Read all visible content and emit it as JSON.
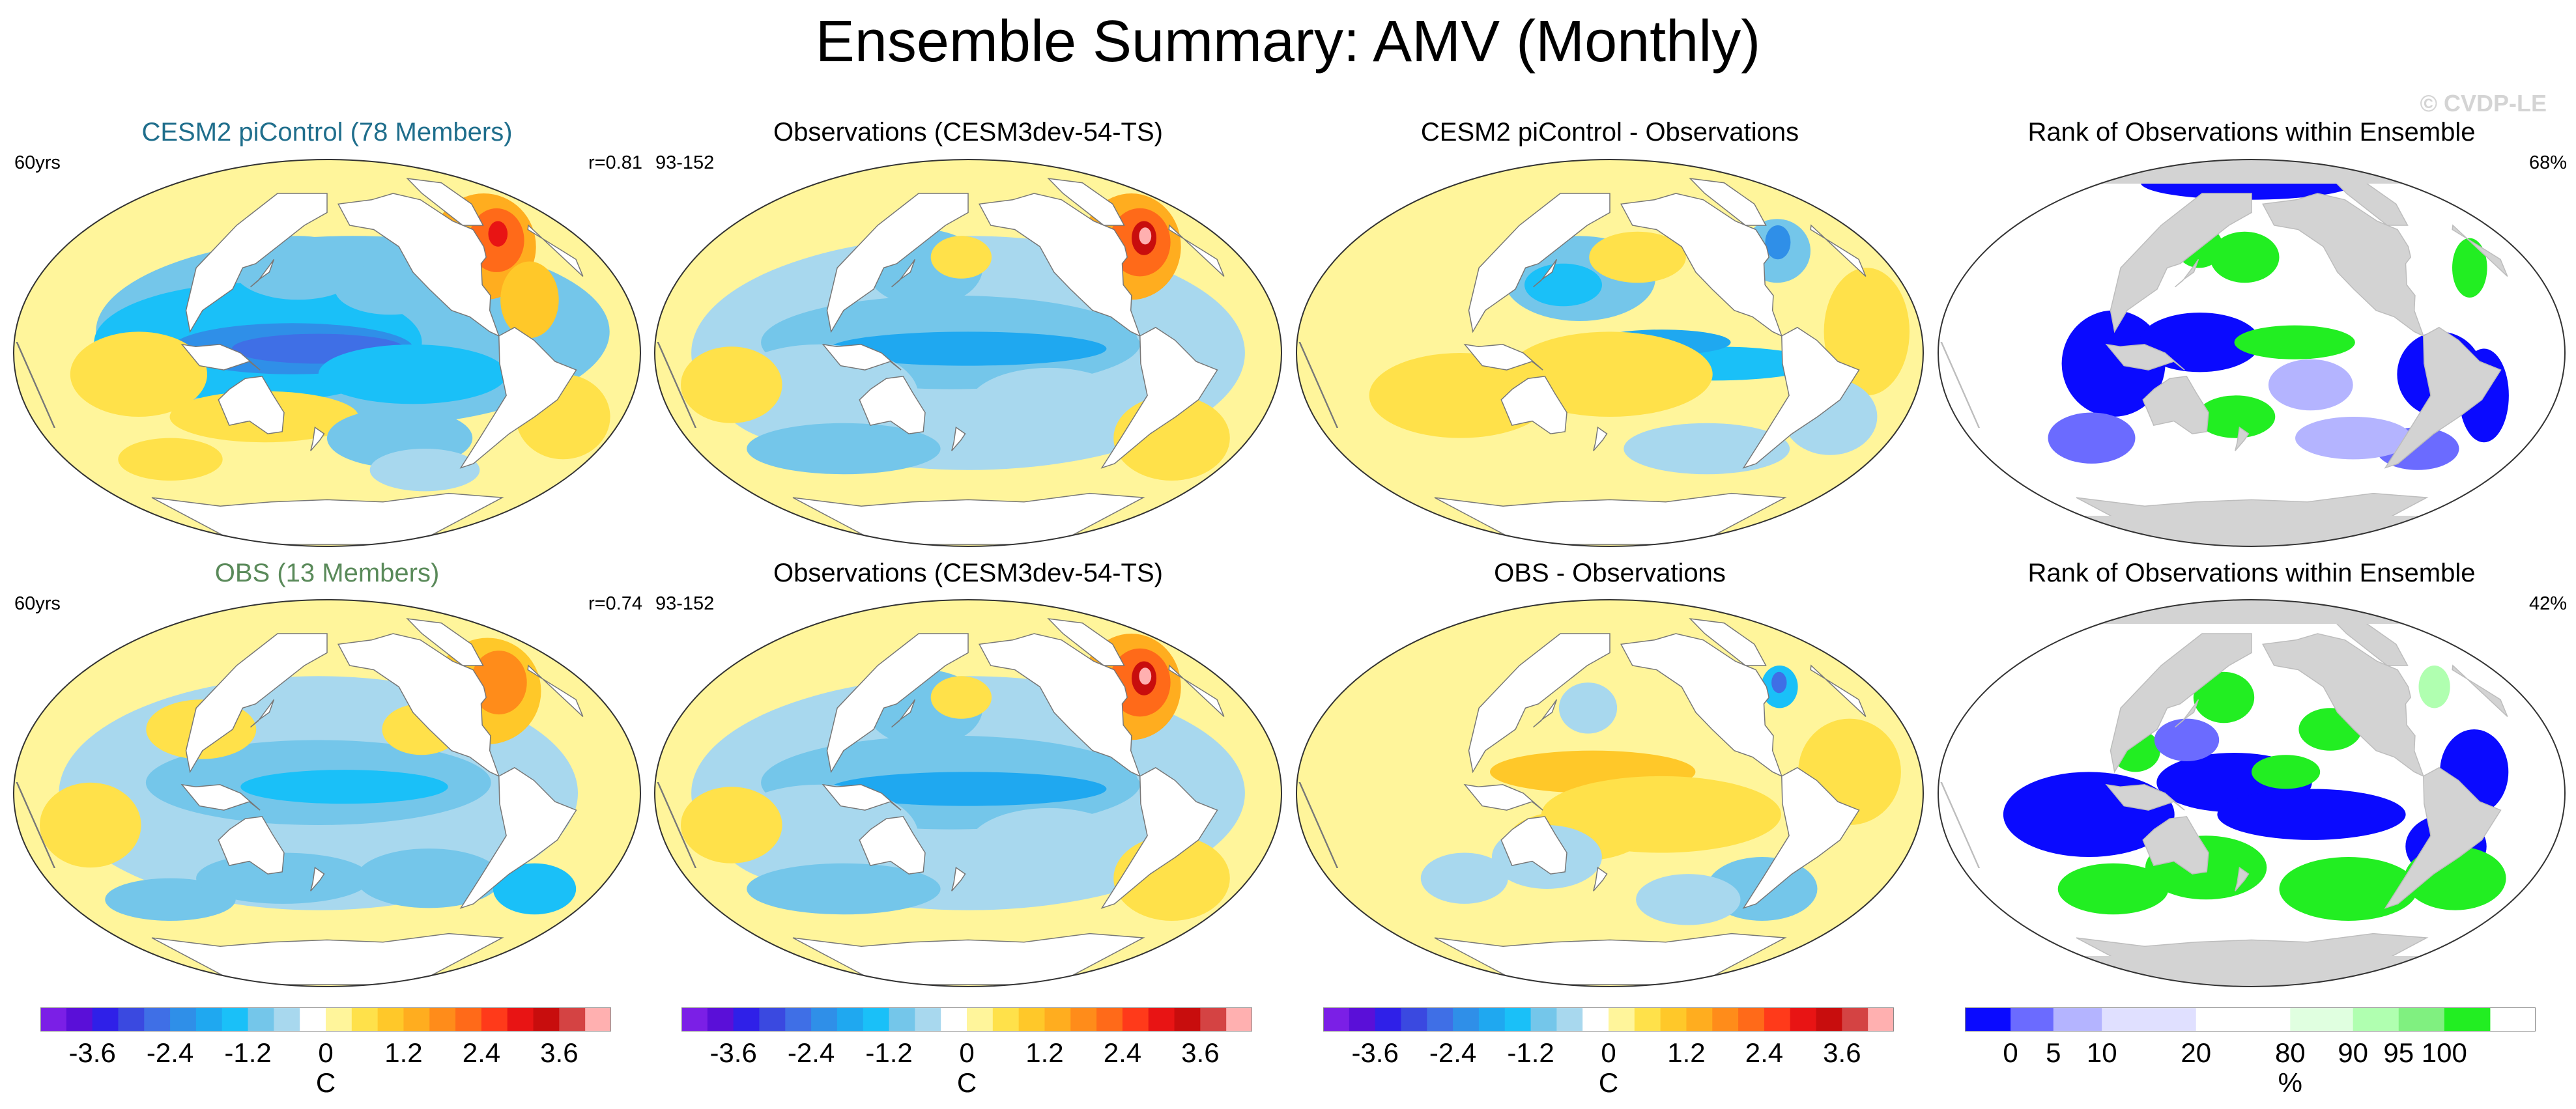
{
  "title": "Ensemble Summary: AMV (Monthly)",
  "watermark": "© CVDP-LE",
  "colors": {
    "temp_palette": [
      "#7b1fe6",
      "#5a0fd8",
      "#2f20e8",
      "#3a49e0",
      "#3f6fe6",
      "#2f8fe8",
      "#1fa8f0",
      "#1ac0f8",
      "#74c6ea",
      "#a8d8ee",
      "#ffffff",
      "#fff59b",
      "#ffe14a",
      "#ffc829",
      "#ffad1f",
      "#ff8c1a",
      "#ff6a19",
      "#ff3a1a",
      "#e81414",
      "#c80d0d",
      "#d44343",
      "#ffb0b0"
    ],
    "rank_palette": [
      "#0a0aff",
      "#6b6bff",
      "#b4b4ff",
      "#e0e0ff",
      "#ffffff",
      "#e0ffe0",
      "#b0ffb0",
      "#80f080",
      "#22ee22"
    ],
    "land": "#d3d3d3",
    "white": "#ffffff"
  },
  "rows": [
    {
      "panels": [
        {
          "id": "r1p1",
          "title": "CESM2 piControl (78 Members)",
          "title_color": "#1f6e8c",
          "left": "60yrs",
          "right": "r=0.81",
          "field": "model1"
        },
        {
          "id": "r1p2",
          "title": "Observations (CESM3dev-54-TS)",
          "title_color": "#000000",
          "left": "93-152",
          "right": "",
          "field": "obs"
        },
        {
          "id": "r1p3",
          "title": "CESM2 piControl - Observations",
          "title_color": "#000000",
          "left": "",
          "right": "",
          "field": "diff1"
        },
        {
          "id": "r1p4",
          "title": "Rank of Observations within Ensemble",
          "title_color": "#000000",
          "left": "",
          "right": "68%",
          "field": "rank1"
        }
      ]
    },
    {
      "panels": [
        {
          "id": "r2p1",
          "title": "OBS (13 Members)",
          "title_color": "#5a8a5a",
          "left": "60yrs",
          "right": "r=0.74",
          "field": "model2"
        },
        {
          "id": "r2p2",
          "title": "Observations (CESM3dev-54-TS)",
          "title_color": "#000000",
          "left": "93-152",
          "right": "",
          "field": "obs"
        },
        {
          "id": "r2p3",
          "title": "OBS - Observations",
          "title_color": "#000000",
          "left": "",
          "right": "",
          "field": "diff2"
        },
        {
          "id": "r2p4",
          "title": "Rank of Observations within Ensemble",
          "title_color": "#000000",
          "left": "",
          "right": "42%",
          "field": "rank2"
        }
      ]
    }
  ],
  "colorbars": [
    {
      "id": "cb1",
      "type": "temp",
      "ticks": [
        "-3.6",
        "-2.4",
        "-1.2",
        "0",
        "1.2",
        "2.4",
        "3.6"
      ],
      "unit": "C"
    },
    {
      "id": "cb2",
      "type": "temp",
      "ticks": [
        "-3.6",
        "-2.4",
        "-1.2",
        "0",
        "1.2",
        "2.4",
        "3.6"
      ],
      "unit": "C"
    },
    {
      "id": "cb3",
      "type": "temp",
      "ticks": [
        "-3.6",
        "-2.4",
        "-1.2",
        "0",
        "1.2",
        "2.4",
        "3.6"
      ],
      "unit": "C"
    },
    {
      "id": "cb4",
      "type": "rank",
      "ticks": [
        "0",
        "5",
        "10",
        "20",
        "80",
        "90",
        "95",
        "100"
      ],
      "unit": "%"
    }
  ],
  "chart_data": {
    "type": "heatmap",
    "title": "Ensemble Summary: AMV (Monthly)",
    "projection": "robinson-like global ocean maps",
    "temperature_levels_C": [
      -4.0,
      -3.6,
      -3.2,
      -2.8,
      -2.4,
      -2.0,
      -1.6,
      -1.2,
      -0.8,
      -0.4,
      0,
      0.4,
      0.8,
      1.2,
      1.6,
      2.0,
      2.4,
      2.8,
      3.2,
      3.6,
      4.0
    ],
    "rank_levels_percent": [
      0,
      5,
      10,
      20,
      80,
      90,
      95,
      100
    ],
    "temperature_colorbar_ticks": [
      -3.6,
      -2.4,
      -1.2,
      0,
      1.2,
      2.4,
      3.6
    ],
    "rank_colorbar_ticks": [
      0,
      5,
      10,
      20,
      80,
      90,
      95,
      100
    ],
    "panels": [
      {
        "name": "CESM2 piControl (78 Members)",
        "years": "60yrs",
        "pattern_correlation": 0.81,
        "feature_anomalies_C": {
          "north_atlantic_max": 2.4,
          "equatorial_pacific_min": -2.8
        }
      },
      {
        "name": "Observations (CESM3dev-54-TS)",
        "years": "93-152",
        "feature_anomalies_C": {
          "north_atlantic_max": 4.0,
          "equatorial_pacific_min": -1.6
        }
      },
      {
        "name": "CESM2 piControl - Observations",
        "feature_anomalies_C": {
          "labrador_sea_min": -2.8,
          "equatorial_pacific_min": -1.2
        }
      },
      {
        "name": "Rank of Observations within Ensemble (CESM2 piControl)",
        "area_within_10_90_percent": 68
      },
      {
        "name": "OBS (13 Members)",
        "years": "60yrs",
        "pattern_correlation": 0.74,
        "feature_anomalies_C": {
          "north_atlantic_max": 2.0,
          "equatorial_pacific_min": -1.2
        }
      },
      {
        "name": "Observations (CESM3dev-54-TS)",
        "years": "93-152",
        "feature_anomalies_C": {
          "north_atlantic_max": 4.0,
          "equatorial_pacific_min": -1.6
        }
      },
      {
        "name": "OBS - Observations",
        "feature_anomalies_C": {
          "labrador_sea_min": -2.8,
          "central_pacific_max": 1.2
        }
      },
      {
        "name": "Rank of Observations within Ensemble (OBS)",
        "area_within_10_90_percent": 42
      }
    ]
  }
}
